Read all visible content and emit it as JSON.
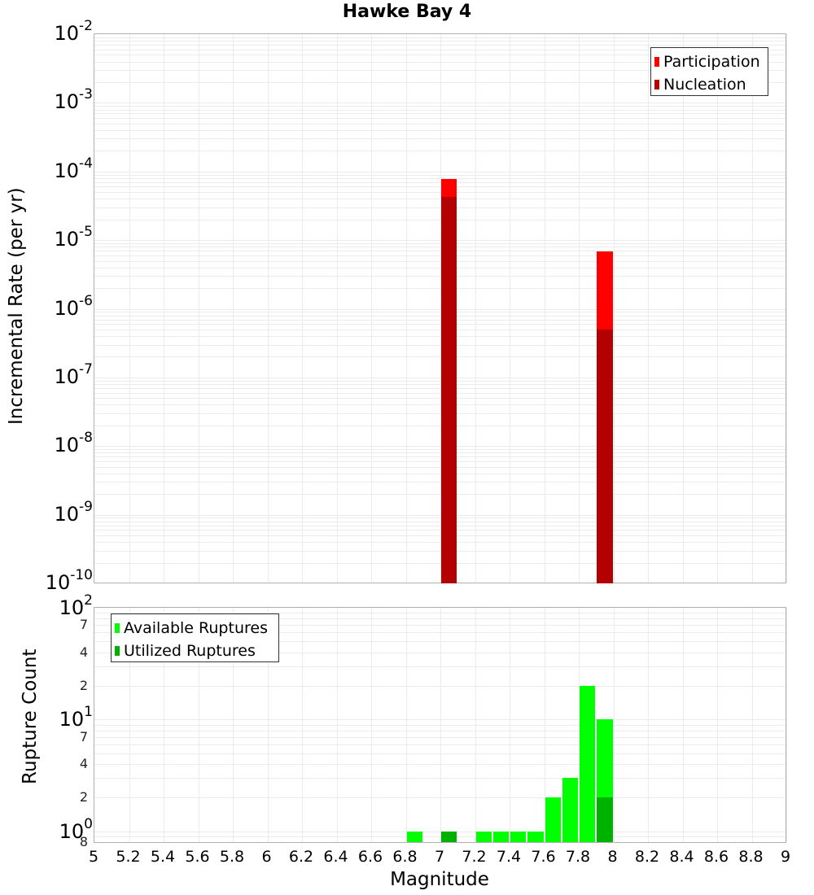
{
  "title": "Hawke Bay 4",
  "colors": {
    "participation": "#ff0000",
    "nucleation": "#b30000",
    "available": "#00ff00",
    "utilized": "#00b200",
    "grid": "#ebebeb",
    "axis": "#b0b0b0"
  },
  "top_chart": {
    "ylabel": "Incremental Rate (per yr)",
    "yticks": [
      {
        "base": "10",
        "exp": "-2"
      },
      {
        "base": "10",
        "exp": "-3"
      },
      {
        "base": "10",
        "exp": "-4"
      },
      {
        "base": "10",
        "exp": "-5"
      },
      {
        "base": "10",
        "exp": "-6"
      },
      {
        "base": "10",
        "exp": "-7"
      },
      {
        "base": "10",
        "exp": "-8"
      },
      {
        "base": "10",
        "exp": "-9"
      },
      {
        "base": "10",
        "exp": "-10"
      }
    ],
    "legend": [
      {
        "label": "Participation",
        "color": "#ff0000"
      },
      {
        "label": "Nucleation",
        "color": "#b30000"
      }
    ]
  },
  "bottom_chart": {
    "ylabel": "Rupture Count",
    "yticks_major": [
      {
        "base": "10",
        "exp": "2"
      },
      {
        "base": "10",
        "exp": "1"
      },
      {
        "base": "10",
        "exp": "0"
      }
    ],
    "yticks_minor": [
      "7",
      "4",
      "2",
      "7",
      "4",
      "2",
      "8"
    ],
    "legend": [
      {
        "label": "Available Ruptures",
        "color": "#00ff00"
      },
      {
        "label": "Utilized Ruptures",
        "color": "#00b200"
      }
    ]
  },
  "xaxis": {
    "label": "Magnitude",
    "ticks": [
      "5",
      "5.2",
      "5.4",
      "5.6",
      "5.8",
      "6",
      "6.2",
      "6.4",
      "6.6",
      "6.8",
      "7",
      "7.2",
      "7.4",
      "7.6",
      "7.8",
      "8",
      "8.2",
      "8.4",
      "8.6",
      "8.8",
      "9"
    ]
  },
  "chart_data": [
    {
      "type": "bar",
      "title": "Hawke Bay 4",
      "xlabel": "Magnitude",
      "ylabel": "Incremental Rate (per yr)",
      "yscale": "log",
      "xlim": [
        5,
        9
      ],
      "ylim": [
        1e-10,
        0.01
      ],
      "grid": true,
      "legend_position": "top-right",
      "x": [
        7.05,
        7.95
      ],
      "series": [
        {
          "name": "Participation",
          "color": "#ff0000",
          "values": [
            7.8e-05,
            6.9e-06
          ]
        },
        {
          "name": "Nucleation",
          "color": "#b30000",
          "values": [
            4.3e-05,
            5e-07
          ]
        }
      ]
    },
    {
      "type": "bar",
      "xlabel": "Magnitude",
      "ylabel": "Rupture Count",
      "yscale": "log",
      "xlim": [
        5,
        9
      ],
      "ylim": [
        0.8,
        100
      ],
      "grid": true,
      "legend_position": "top-left",
      "x": [
        6.85,
        7.05,
        7.25,
        7.35,
        7.45,
        7.55,
        7.65,
        7.75,
        7.85,
        7.95
      ],
      "series": [
        {
          "name": "Available Ruptures",
          "color": "#00ff00",
          "values": [
            1,
            1,
            1,
            1,
            1,
            1,
            2,
            3,
            20,
            10
          ]
        },
        {
          "name": "Utilized Ruptures",
          "color": "#00b200",
          "values": [
            0,
            1,
            0,
            0,
            0,
            0,
            0,
            0,
            0,
            2
          ]
        }
      ]
    }
  ]
}
